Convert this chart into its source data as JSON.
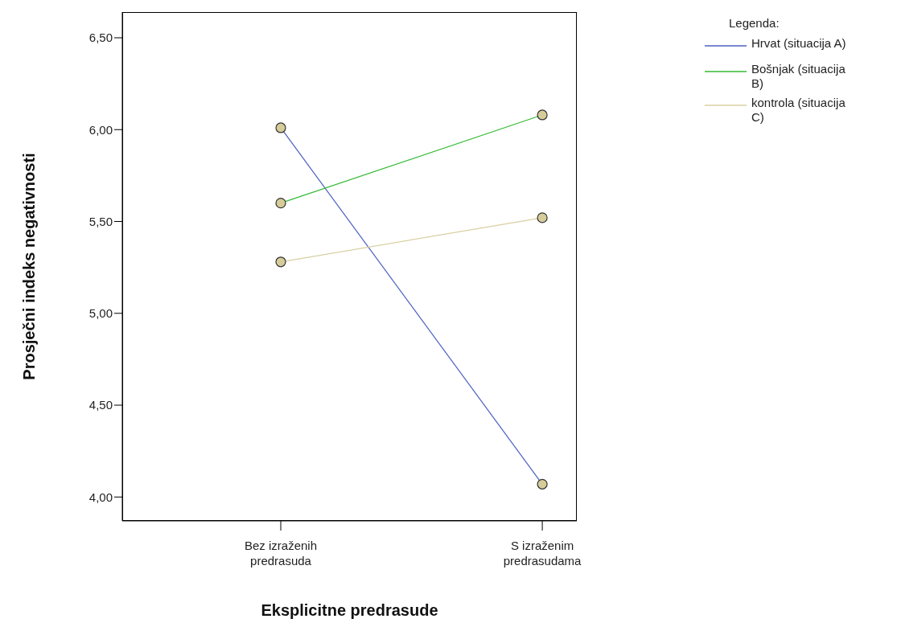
{
  "chart_data": {
    "type": "line",
    "xlabel": "Eksplicitne predrasude",
    "ylabel": "Prosječni indeks negativnosti",
    "legend_title": "Legenda:",
    "legend": "top right",
    "marker": "circle",
    "line_style": "solid",
    "grid": false,
    "categories": [
      "Bez izraženih predrasuda",
      "S izraženim predrasudama"
    ],
    "ylim": [
      3.87,
      6.64
    ],
    "yticks": [
      {
        "value": 4,
        "label": "4,00"
      },
      {
        "value": 4.5,
        "label": "4,50"
      },
      {
        "value": 5,
        "label": "5,00"
      },
      {
        "value": 5.5,
        "label": "5,50"
      },
      {
        "value": 6,
        "label": "6,00"
      },
      {
        "value": 6.5,
        "label": "6,50"
      }
    ],
    "series": [
      {
        "name": "Hrvat (situacija A)",
        "color": "#4a5fc1",
        "values": [
          6.01,
          4.07
        ]
      },
      {
        "name": "Bošnjak (situacija B)",
        "color": "#33bb33",
        "values": [
          5.6,
          6.08
        ]
      },
      {
        "name": "kontrola (situacija C)",
        "color": "#d8d0a0",
        "values": [
          5.28,
          5.52
        ]
      }
    ]
  }
}
